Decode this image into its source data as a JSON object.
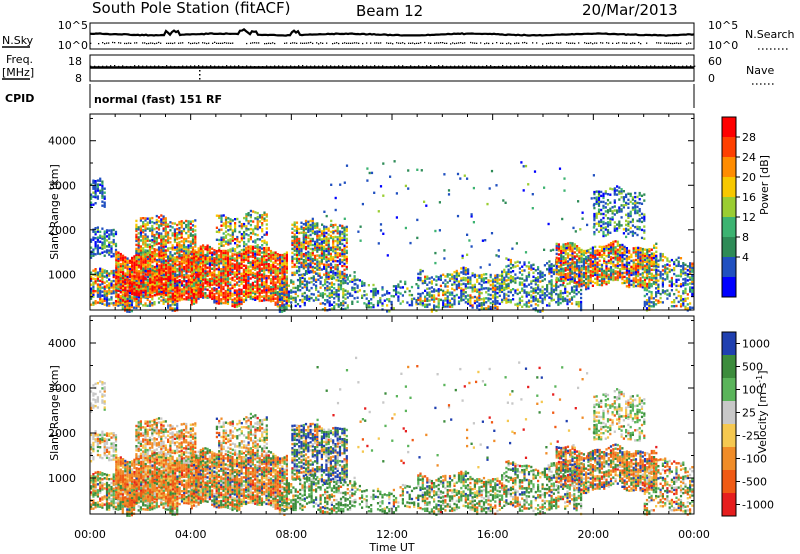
{
  "header": {
    "title": "South Pole Station (fitACF)",
    "beam": "Beam 12",
    "date": "20/Mar/2013"
  },
  "status_panels": {
    "nsky": {
      "label": "N.Sky",
      "ticks": [
        "10^5",
        "10^0"
      ]
    },
    "nsearch": {
      "label": "N.Search",
      "ticks": [
        "10^5",
        "10^0"
      ]
    },
    "freq": {
      "label_line1": "Freq.",
      "label_line2": "[MHz]",
      "ticks": [
        "18",
        "8"
      ]
    },
    "nave": {
      "label": "Nave",
      "ticks": [
        "60",
        "0"
      ]
    },
    "cpid": {
      "label": "CPID",
      "text": "normal (fast) 151 RF"
    }
  },
  "chart_data": [
    {
      "type": "heatmap",
      "name": "power",
      "ylabel": "Slant Range [km]",
      "yticks": [
        "1000",
        "2000",
        "3000",
        "4000"
      ],
      "yrange": [
        200,
        4600
      ],
      "colorbar": {
        "label": "Power [dB]",
        "ticks": [
          "28",
          "24",
          "20",
          "16",
          "12",
          "8",
          "4"
        ],
        "colors": [
          "#ff0000",
          "#ff4000",
          "#ff8c00",
          "#f7c800",
          "#9acd32",
          "#3cb371",
          "#2e8b57",
          "#2050c0",
          "#0000ff"
        ]
      }
    },
    {
      "type": "heatmap",
      "name": "velocity",
      "ylabel": "Slant Range [km]",
      "yticks": [
        "1000",
        "2000",
        "3000",
        "4000"
      ],
      "yrange": [
        200,
        4600
      ],
      "colorbar": {
        "label": "Velocity [m s-1]",
        "label_main": "Velocity",
        "label_unit": "[m s",
        "label_exp": "-1",
        "label_close": "]",
        "ticks": [
          "1000",
          "500",
          "100",
          "25",
          "-25",
          "-100",
          "-500",
          "-1000"
        ],
        "colors": [
          "#2040b0",
          "#3c8c3c",
          "#5ab45a",
          "#c8c8c8",
          "#f5c850",
          "#f08c28",
          "#f05a14",
          "#e61e1e"
        ]
      }
    }
  ],
  "xaxis": {
    "label": "Time UT",
    "ticks": [
      "00:00",
      "04:00",
      "08:00",
      "12:00",
      "16:00",
      "20:00",
      "00:00"
    ]
  }
}
